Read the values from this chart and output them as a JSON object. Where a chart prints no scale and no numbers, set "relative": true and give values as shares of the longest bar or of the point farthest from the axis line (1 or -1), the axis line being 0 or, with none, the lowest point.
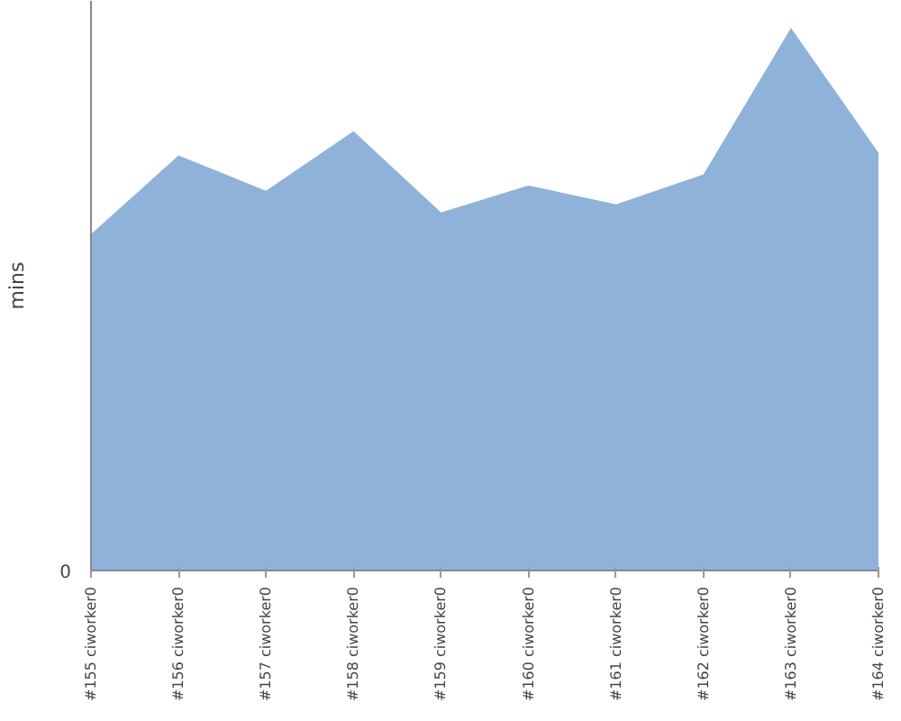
{
  "chart_data": {
    "type": "area",
    "ylabel": "mins",
    "relative": true,
    "grid": false,
    "categories": [
      "#155 ciworker0",
      "#156 ciworker0",
      "#157 ciworker0",
      "#158 ciworker0",
      "#159 ciworker0",
      "#160 ciworker0",
      "#161 ciworker0",
      "#162 ciworker0",
      "#163 ciworker0",
      "#164 ciworker0"
    ],
    "series": [
      {
        "color": "#8fb2da",
        "values": [
          0.62,
          0.765,
          0.7,
          0.81,
          0.66,
          0.71,
          0.675,
          0.73,
          1,
          0.77
        ]
      }
    ],
    "annotations": [
      "0"
    ]
  }
}
